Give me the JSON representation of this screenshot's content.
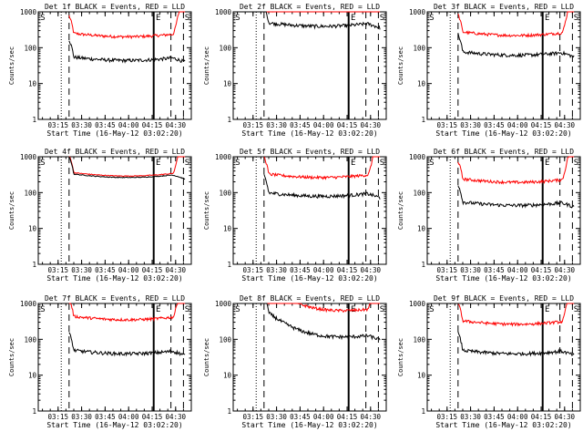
{
  "chart_data": {
    "type": "line",
    "grid_layout": "3x3",
    "y_scale": "log",
    "ylim": [
      1,
      1000
    ],
    "xlim": [
      "03:02:20",
      "04:40:00"
    ],
    "xtick_labels": [
      "03:15",
      "03:30",
      "03:45",
      "04:00",
      "04:15",
      "04:30"
    ],
    "ylabel": "Counts/sec",
    "xlabel": "Start Time (16-May-12 03:02:20)",
    "colors": {
      "events": "#000000",
      "lld": "#ff0000"
    },
    "markers": [
      {
        "x": "03:17",
        "style": "dotted"
      },
      {
        "x": "03:22",
        "style": "dashed"
      },
      {
        "x": "04:16",
        "style": "solid"
      },
      {
        "x": "04:27",
        "style": "dashed"
      },
      {
        "x": "04:35",
        "style": "dashed"
      }
    ],
    "marker_letters": [
      "S",
      "E",
      "S"
    ],
    "panels": [
      {
        "title": "Det 1f BLACK = Events, RED = LLD",
        "xlabel": "Start Time (16-May-12 03:02:20)",
        "show_ylabel": true,
        "events_level": 50,
        "lld_level": 230,
        "shape": "normal"
      },
      {
        "title": "Det 2f BLACK = Events, RED = LLD",
        "xlabel": "Start Time (16-May-12 03:02:20)",
        "show_ylabel": true,
        "events_level": 450,
        "lld_level": 900,
        "shape": "flat"
      },
      {
        "title": "Det 3f BLACK = Events, RED = LLD",
        "xlabel": "Start Time (16-May-12 03:02:20)",
        "show_ylabel": true,
        "events_level": 70,
        "lld_level": 250,
        "shape": "normal"
      },
      {
        "title": "Det 4f BLACK = Events, RED = LLD",
        "xlabel": "Start Time (16-May-12 03:02:20)",
        "show_ylabel": true,
        "events_level": 300,
        "lld_level": 330,
        "shape": "close"
      },
      {
        "title": "Det 5f BLACK = Events, RED = LLD",
        "xlabel": "Start Time (16-May-12 03:02:20)",
        "show_ylabel": true,
        "events_level": 90,
        "lld_level": 300,
        "shape": "normal"
      },
      {
        "title": "Det 6f BLACK = Events, RED = LLD",
        "xlabel": "Start Time (16-May-12 03:02:20)",
        "show_ylabel": true,
        "events_level": 50,
        "lld_level": 220,
        "shape": "normal"
      },
      {
        "title": "Det 7f BLACK = Events, RED = LLD",
        "xlabel": "Start Time (16-May-12 03:02:20)",
        "show_ylabel": true,
        "events_level": 45,
        "lld_level": 400,
        "shape": "normal"
      },
      {
        "title": "Det 8f BLACK = Events, RED = LLD",
        "xlabel": "Start Time (16-May-12 03:02:20)",
        "show_ylabel": true,
        "events_level": 120,
        "lld_level": 650,
        "shape": "decay"
      },
      {
        "title": "Det 9f BLACK = Events, RED = LLD",
        "xlabel": "Start Time (16-May-12 03:02:20)",
        "show_ylabel": true,
        "events_level": 45,
        "lld_level": 300,
        "shape": "normal"
      }
    ]
  }
}
